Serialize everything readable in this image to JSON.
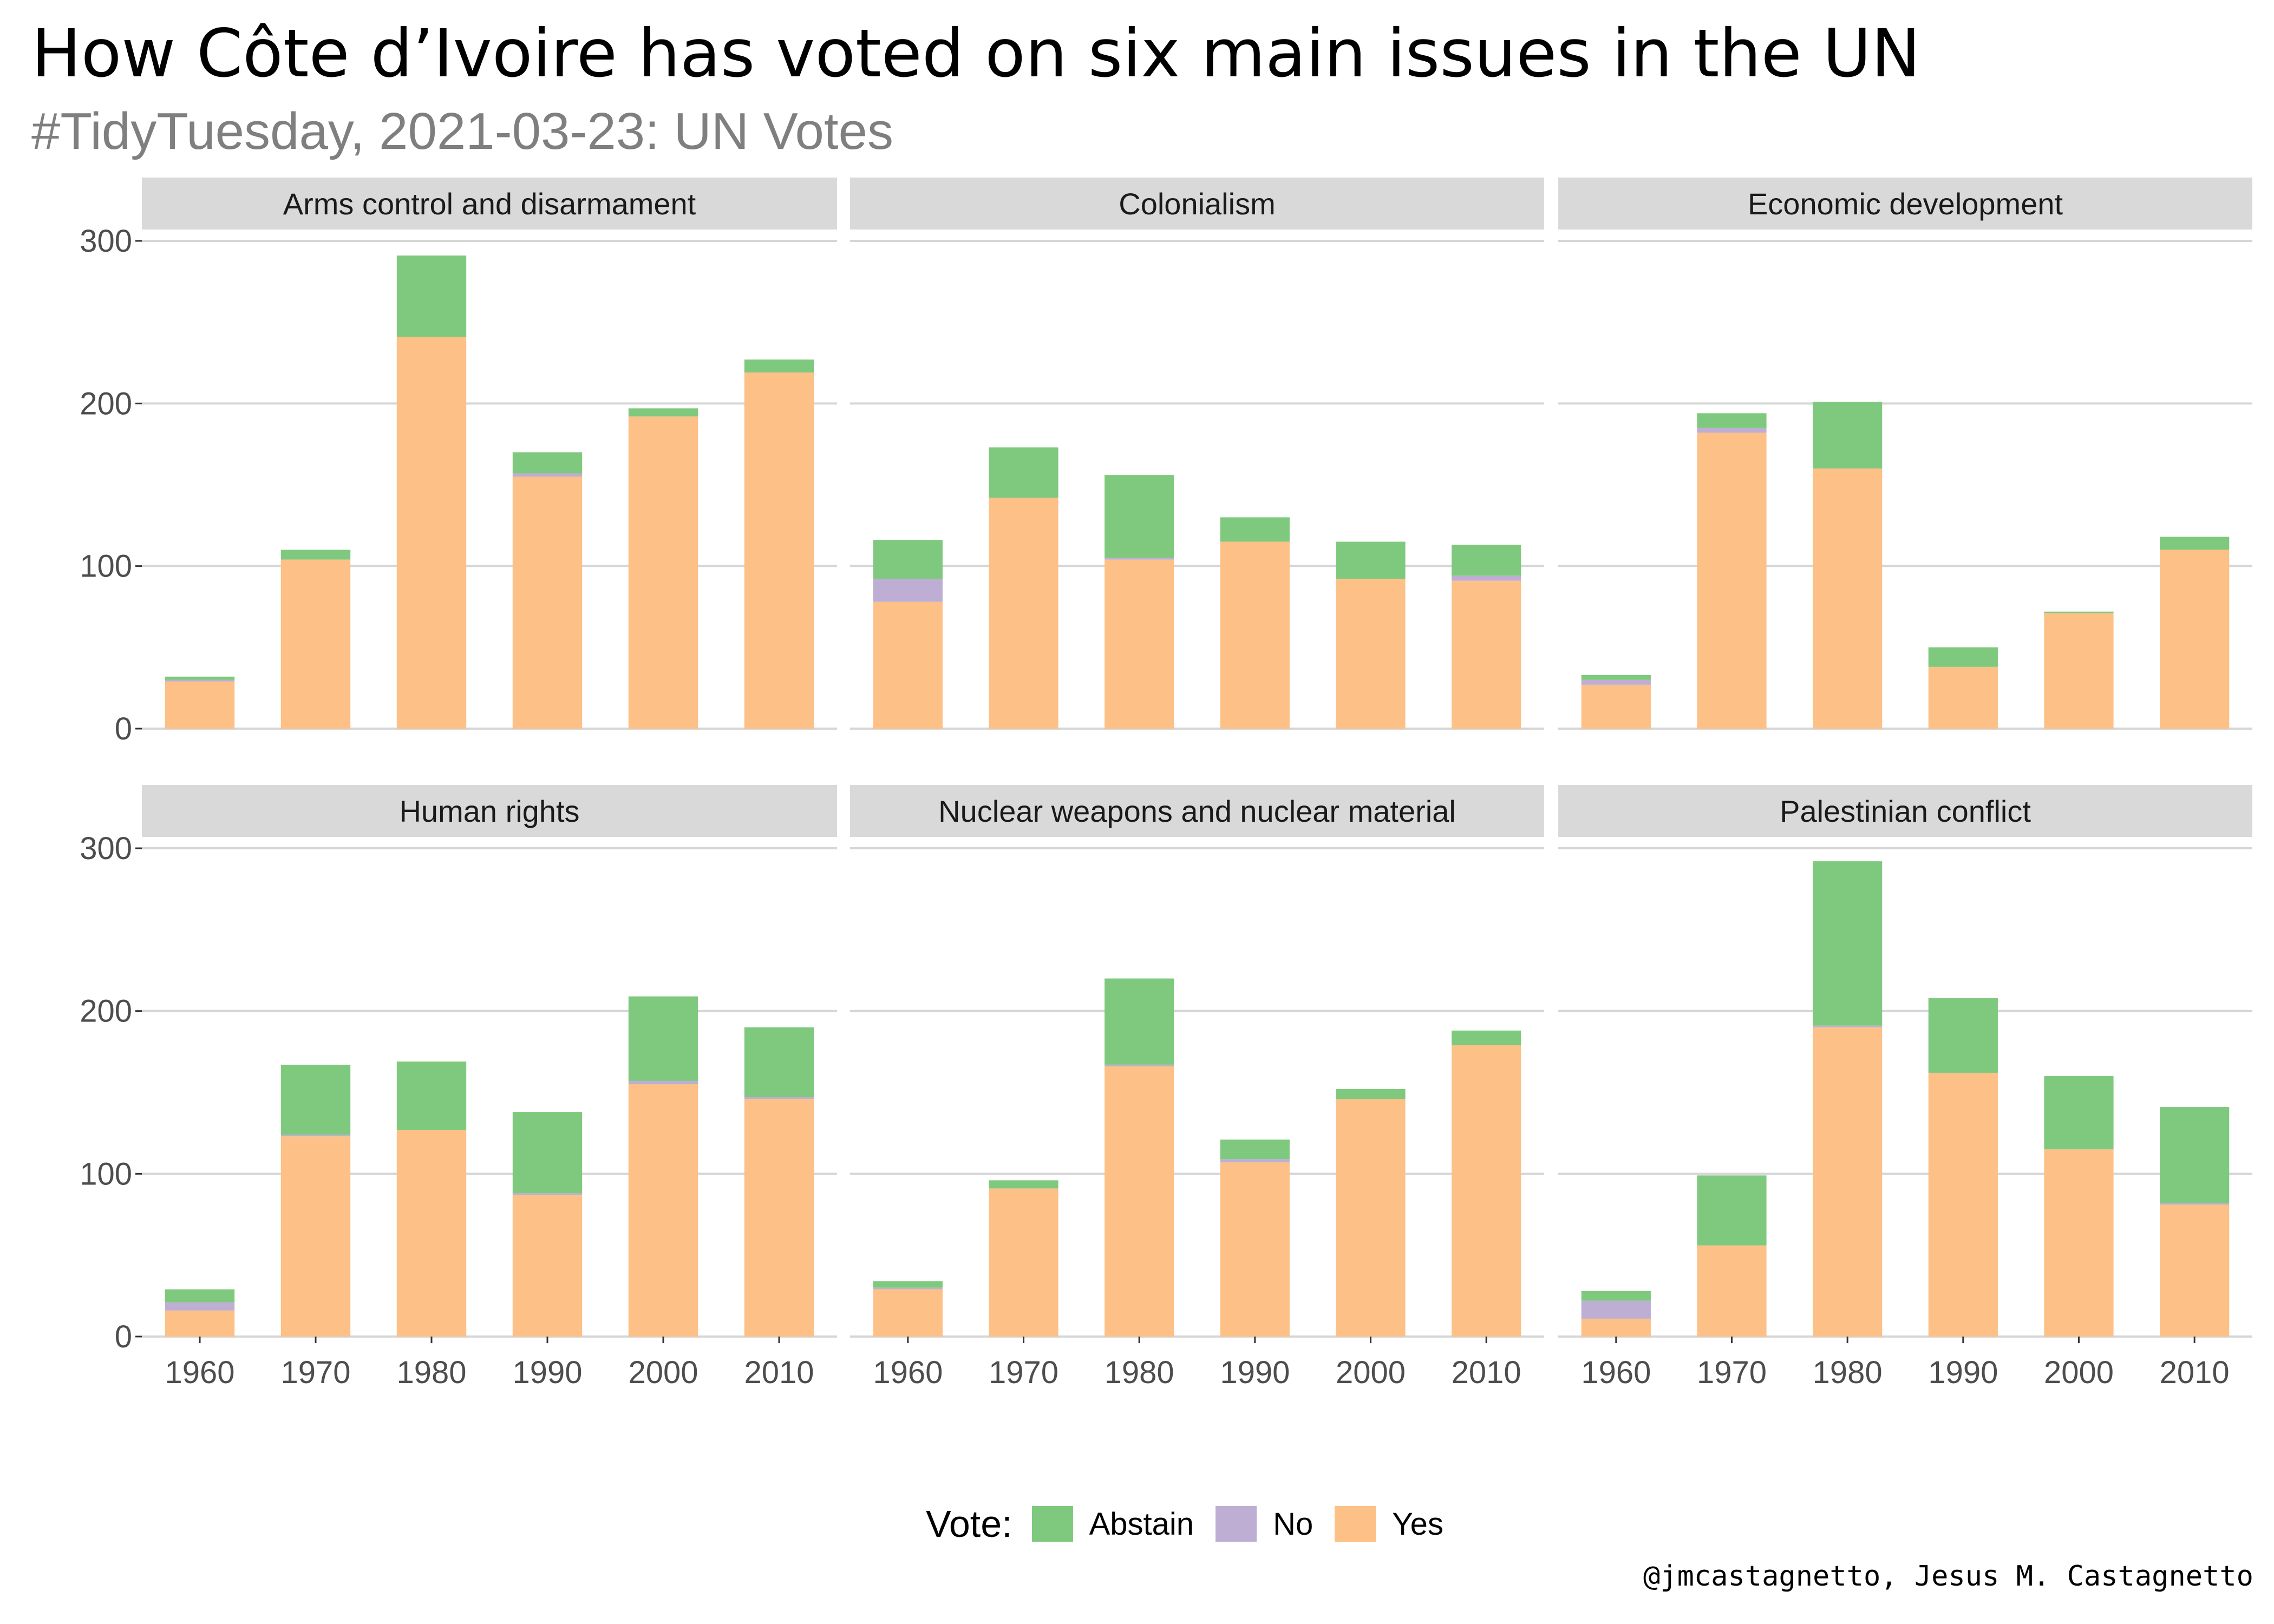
{
  "title": "How Côte d’Ivoire has voted on six main issues in the UN",
  "subtitle": "#TidyTuesday, 2021-03-23: UN Votes",
  "caption": "@jmcastagnetto, Jesus M. Castagnetto",
  "legend": {
    "title": "Vote:",
    "items": [
      {
        "label": "Abstain",
        "color": "#7fc97f"
      },
      {
        "label": "No",
        "color": "#beaed4"
      },
      {
        "label": "Yes",
        "color": "#fdc086"
      }
    ]
  },
  "chart_data": {
    "type": "bar",
    "stacked": true,
    "facets_layout": "2 rows x 3 columns",
    "categories": [
      "1960",
      "1970",
      "1980",
      "1990",
      "2000",
      "2010"
    ],
    "ylim": [
      0,
      300
    ],
    "yticks": [
      0,
      100,
      200,
      300
    ],
    "stack_order_bottom_to_top": [
      "Yes",
      "No",
      "Abstain"
    ],
    "colors": {
      "Yes": "#fdc086",
      "No": "#beaed4",
      "Abstain": "#7fc97f"
    },
    "legend_position": "bottom",
    "grid": true,
    "facets": [
      {
        "name": "Arms control and disarmament",
        "series": {
          "Yes": [
            29,
            104,
            241,
            155,
            192,
            219
          ],
          "No": [
            1,
            0,
            0,
            2,
            0,
            0
          ],
          "Abstain": [
            2,
            6,
            50,
            13,
            5,
            8
          ]
        }
      },
      {
        "name": "Colonialism",
        "series": {
          "Yes": [
            78,
            142,
            104,
            115,
            92,
            91
          ],
          "No": [
            14,
            0,
            1,
            0,
            0,
            3
          ],
          "Abstain": [
            24,
            31,
            51,
            15,
            23,
            19
          ]
        }
      },
      {
        "name": "Economic development",
        "series": {
          "Yes": [
            27,
            182,
            160,
            38,
            71,
            110
          ],
          "No": [
            3,
            3,
            0,
            0,
            0,
            0
          ],
          "Abstain": [
            3,
            9,
            41,
            12,
            1,
            8
          ]
        }
      },
      {
        "name": "Human rights",
        "series": {
          "Yes": [
            16,
            123,
            127,
            87,
            155,
            146
          ],
          "No": [
            5,
            1,
            0,
            1,
            2,
            1
          ],
          "Abstain": [
            8,
            43,
            42,
            50,
            52,
            43
          ]
        }
      },
      {
        "name": "Nuclear weapons and nuclear material",
        "series": {
          "Yes": [
            29,
            91,
            166,
            107,
            146,
            179
          ],
          "No": [
            1,
            0,
            1,
            2,
            0,
            0
          ],
          "Abstain": [
            4,
            5,
            53,
            12,
            6,
            9
          ]
        }
      },
      {
        "name": "Palestinian conflict",
        "series": {
          "Yes": [
            11,
            56,
            190,
            162,
            115,
            81
          ],
          "No": [
            11,
            0,
            1,
            0,
            0,
            1
          ],
          "Abstain": [
            6,
            43,
            101,
            46,
            45,
            59
          ]
        }
      }
    ]
  }
}
